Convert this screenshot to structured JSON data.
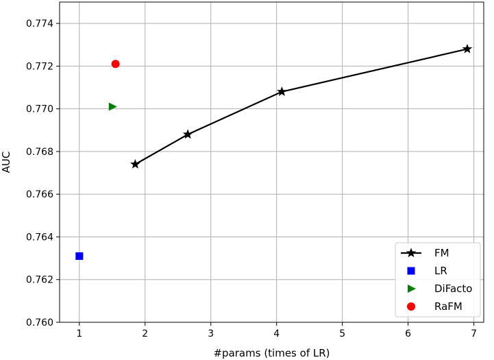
{
  "chart_data": {
    "type": "scatter",
    "xlabel": "#params (times of LR)",
    "ylabel": "AUC",
    "xlim": [
      0.7,
      7.15
    ],
    "ylim": [
      0.76,
      0.775
    ],
    "x_ticks": [
      1,
      2,
      3,
      4,
      5,
      6,
      7
    ],
    "y_ticks": [
      0.76,
      0.762,
      0.764,
      0.766,
      0.768,
      0.77,
      0.772,
      0.774
    ],
    "y_tick_labels": [
      "0.760",
      "0.762",
      "0.764",
      "0.766",
      "0.768",
      "0.770",
      "0.772",
      "0.774"
    ],
    "grid": true,
    "legend_position": "lower-right",
    "series": [
      {
        "name": "FM",
        "marker": "star",
        "line": true,
        "color": "#000000",
        "x": [
          1.85,
          2.65,
          4.08,
          6.9
        ],
        "y": [
          0.7674,
          0.7688,
          0.7708,
          0.7728
        ]
      },
      {
        "name": "LR",
        "marker": "square",
        "line": false,
        "color": "#0000ff",
        "x": [
          1.0
        ],
        "y": [
          0.7631
        ]
      },
      {
        "name": "DiFacto",
        "marker": "triangle-right",
        "line": false,
        "color": "#008000",
        "x": [
          1.5
        ],
        "y": [
          0.7701
        ]
      },
      {
        "name": "RaFM",
        "marker": "circle",
        "line": false,
        "color": "#ff0000",
        "x": [
          1.55
        ],
        "y": [
          0.7721
        ]
      }
    ]
  }
}
